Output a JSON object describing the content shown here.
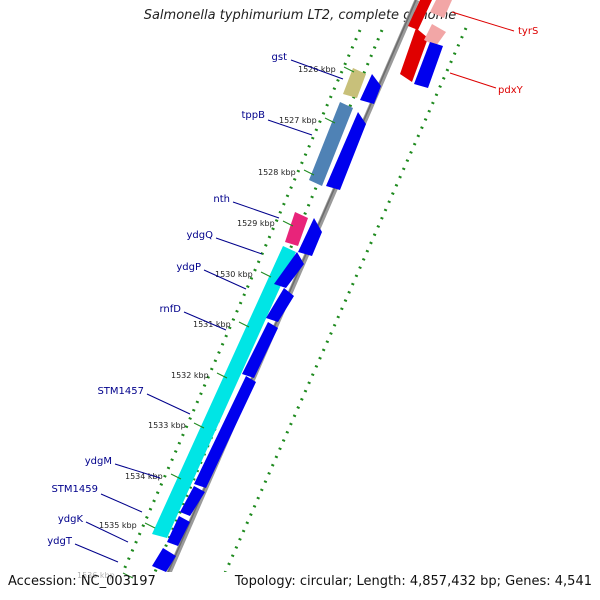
{
  "title": "Salmonella typhimurium LT2, complete genome",
  "accession": "Accession: NC_003197",
  "summary": "Topology: circular; Length: 4,857,432 bp; Genes: 4,541",
  "kbp_ticks": [
    "1526 kbp",
    "1527 kbp",
    "1528 kbp",
    "1529 kbp",
    "1530 kbp",
    "1531 kbp",
    "1532 kbp",
    "1533 kbp",
    "1534 kbp",
    "1535 kbp",
    "1536 kbp"
  ],
  "genes_left": [
    "gst",
    "tppB",
    "nth",
    "ydgQ",
    "ydgP",
    "rnfD",
    "STM1457",
    "ydgM",
    "STM1459",
    "ydgK",
    "ydgT"
  ],
  "genes_right": [
    "tyrS",
    "pdxY"
  ],
  "colors": {
    "gene_blue": "#0000ee",
    "cyan": "#00e5e5",
    "steel": "#4f82b5",
    "olive": "#c8c07a",
    "magenta": "#e8247a",
    "red": "#e00000",
    "pink": "#f2a6a6",
    "label_blue": "#00008b",
    "label_red": "#dd0000",
    "tick_green": "#1e8a1e",
    "backbone": "#808080"
  }
}
